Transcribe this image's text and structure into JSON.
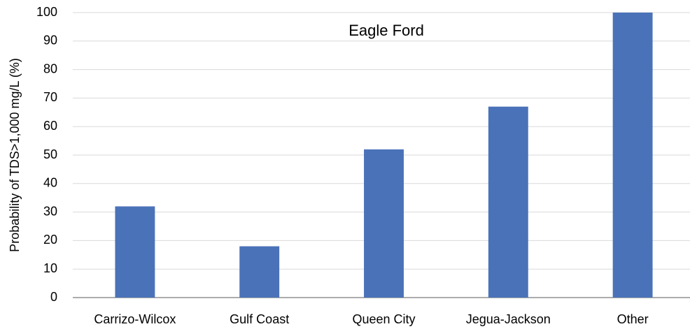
{
  "chart_data": {
    "type": "bar",
    "title": "Eagle Ford",
    "y_label": "Probability of TDS>1,000 mg/L (%)",
    "categories": [
      "Carrizo-Wilcox",
      "Gulf Coast",
      "Queen City",
      "Jegua-Jackson",
      "Other"
    ],
    "values": [
      32,
      18,
      52,
      67,
      100
    ],
    "color": "#4a72b8",
    "ylim": [
      0,
      100
    ],
    "yticks": [
      0,
      10,
      20,
      30,
      40,
      50,
      60,
      70,
      80,
      90,
      100
    ],
    "grid": true
  }
}
